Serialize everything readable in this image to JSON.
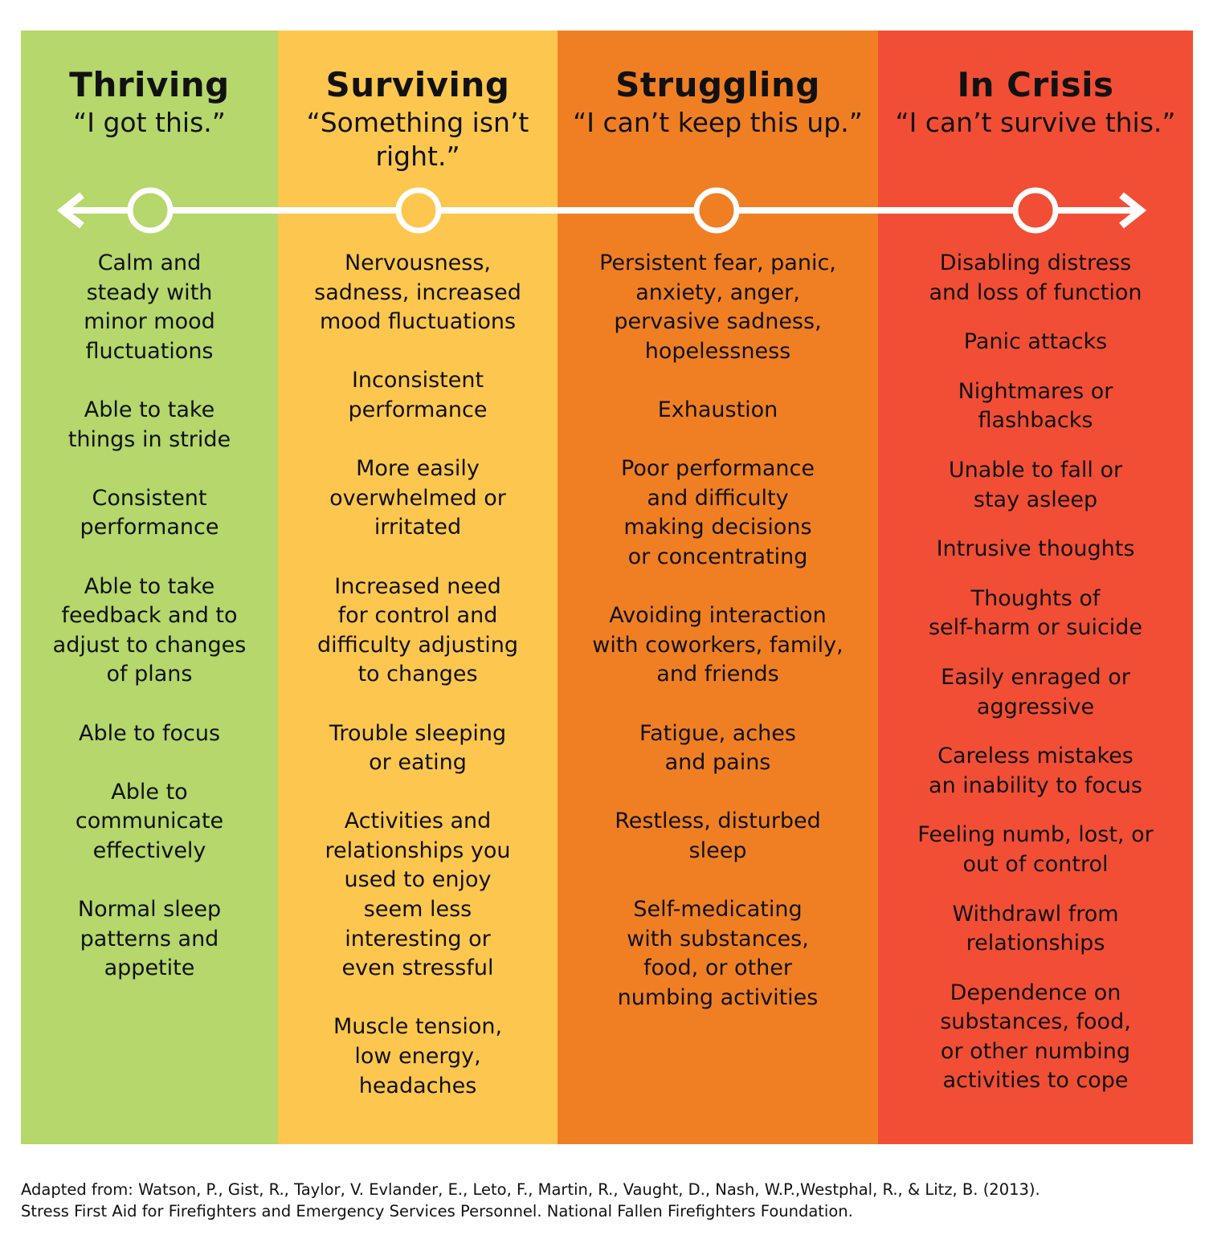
{
  "colors": {
    "thriving": "#b5d76b",
    "surviving": "#fdc74f",
    "struggling": "#f07f24",
    "crisis": "#f24e35",
    "scale": "#ffffff"
  },
  "columns": [
    {
      "title": "Thriving",
      "quote": "“I got this.”",
      "items": [
        "Calm and\nsteady with\nminor mood\nfluctuations",
        "Able to take\nthings in stride",
        "Consistent\nperformance",
        "Able to take\nfeedback and to\nadjust to changes\nof plans",
        "Able to focus",
        "Able to\ncommunicate\neffectively",
        "Normal sleep\npatterns and\nappetite"
      ]
    },
    {
      "title": "Surviving",
      "quote": "“Something isn’t\nright.”",
      "items": [
        "Nervousness,\nsadness, increased\nmood fluctuations",
        "Inconsistent\nperformance",
        "More easily\noverwhelmed or\nirritated",
        "Increased need\nfor control and\ndifficulty adjusting\nto changes",
        "Trouble sleeping\nor eating",
        "Activities and\nrelationships you\nused to enjoy\nseem less\ninteresting or\neven stressful",
        "Muscle tension,\nlow energy,\nheadaches"
      ]
    },
    {
      "title": "Struggling",
      "quote": "“I can’t keep this up.”",
      "items": [
        "Persistent fear, panic,\nanxiety, anger,\npervasive sadness,\nhopelessness",
        "Exhaustion",
        "Poor performance\nand difficulty\nmaking decisions\nor concentrating",
        "Avoiding interaction\nwith coworkers, family,\nand friends",
        "Fatigue, aches\nand pains",
        "Restless, disturbed\nsleep",
        "Self-medicating\nwith substances,\nfood, or other\nnumbing activities"
      ]
    },
    {
      "title": "In Crisis",
      "quote": "“I can’t survive this.”",
      "items": [
        "Disabling distress\nand loss of function",
        "Panic attacks",
        "Nightmares or\nflashbacks",
        "Unable to fall or\nstay asleep",
        "Intrusive thoughts",
        "Thoughts of\nself-harm or suicide",
        "Easily enraged or\naggressive",
        "Careless mistakes\nan inability to focus",
        "Feeling numb, lost, or\nout of control",
        "Withdrawl from\nrelationships",
        "Dependence on\nsubstances, food,\nor other numbing\nactivities to cope"
      ]
    }
  ],
  "footer": {
    "line1": "Adapted from: Watson, P., Gist, R., Taylor, V. Evlander, E., Leto, F., Martin, R., Vaught, D., Nash, W.P.,Westphal, R., & Litz, B. (2013).",
    "line2": "Stress First Aid for Firefighters and Emergency Services Personnel. National Fallen Firefighters Foundation."
  }
}
